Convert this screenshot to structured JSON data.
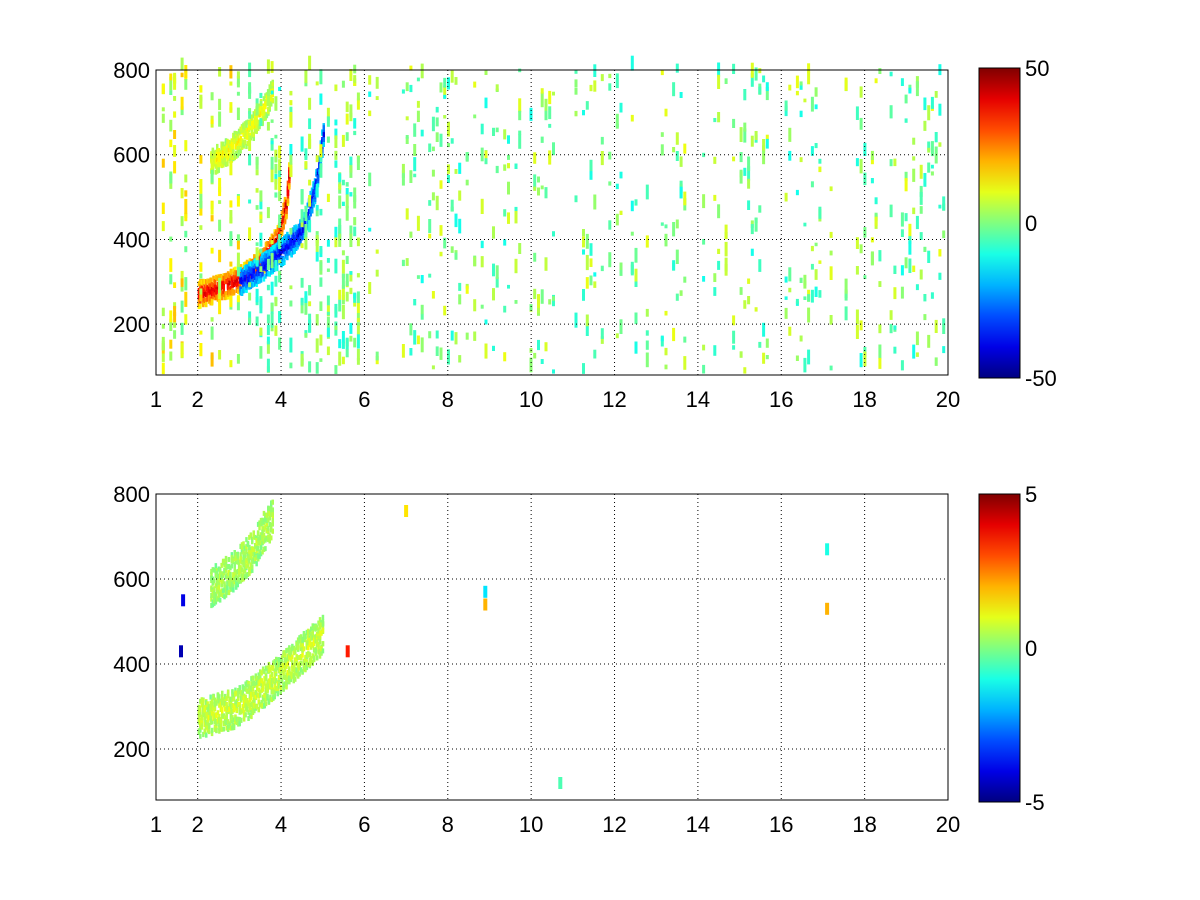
{
  "chart_data": [
    {
      "type": "heatmap",
      "title": "",
      "xlabel": "",
      "ylabel": "",
      "xlim": [
        1,
        20
      ],
      "ylim": [
        80,
        800
      ],
      "x_ticks": [
        "1",
        "2",
        "4",
        "6",
        "8",
        "10",
        "12",
        "14",
        "16",
        "18",
        "20"
      ],
      "x_tick_values": [
        1,
        2,
        4,
        6,
        8,
        10,
        12,
        14,
        16,
        18,
        20
      ],
      "y_ticks": [
        "200",
        "400",
        "600",
        "800"
      ],
      "y_tick_values": [
        200,
        400,
        600,
        800
      ],
      "grid": true,
      "colormap": "jet",
      "colorbar": {
        "min": -50,
        "max": 50,
        "ticks": [
          "50",
          "0",
          "-50"
        ],
        "tick_values": [
          50,
          0,
          -50
        ]
      },
      "features": [
        {
          "name": "upper band",
          "points": [
            [
              2.3,
              580
            ],
            [
              2.8,
              615
            ],
            [
              3.3,
              665
            ],
            [
              3.8,
              750
            ]
          ],
          "value": 12
        },
        {
          "name": "main curve",
          "points": [
            [
              2.0,
              270
            ],
            [
              2.5,
              285
            ],
            [
              3.0,
              305
            ],
            [
              3.5,
              345
            ],
            [
              3.9,
              400
            ],
            [
              4.1,
              480
            ],
            [
              4.2,
              580
            ]
          ],
          "value": 42
        },
        {
          "name": "negative curve",
          "points": [
            [
              3.0,
              300
            ],
            [
              3.5,
              330
            ],
            [
              4.0,
              370
            ],
            [
              4.5,
              420
            ],
            [
              4.8,
              520
            ],
            [
              5.0,
              650
            ]
          ],
          "value": -40
        }
      ],
      "scatter_density": "dense vertical streaks of values near 0 (-10 to 10) across x = 1 to 20"
    },
    {
      "type": "heatmap",
      "title": "",
      "xlabel": "",
      "ylabel": "",
      "xlim": [
        1,
        20
      ],
      "ylim": [
        80,
        800
      ],
      "x_ticks": [
        "1",
        "2",
        "4",
        "6",
        "8",
        "10",
        "12",
        "14",
        "16",
        "18",
        "20"
      ],
      "x_tick_values": [
        1,
        2,
        4,
        6,
        8,
        10,
        12,
        14,
        16,
        18,
        20
      ],
      "y_ticks": [
        "200",
        "400",
        "600",
        "800"
      ],
      "y_tick_values": [
        200,
        400,
        600,
        800
      ],
      "grid": true,
      "colormap": "jet",
      "colorbar": {
        "min": -5,
        "max": 5,
        "ticks": [
          "5",
          "0",
          "-5"
        ],
        "tick_values": [
          5,
          0,
          -5
        ]
      },
      "features": [
        {
          "name": "upper band",
          "points": [
            [
              2.3,
              580
            ],
            [
              2.8,
              615
            ],
            [
              3.3,
              665
            ],
            [
              3.8,
              750
            ]
          ],
          "value": 0.5
        },
        {
          "name": "main region",
          "points": [
            [
              2.0,
              270
            ],
            [
              3.0,
              300
            ],
            [
              4.0,
              380
            ],
            [
              5.0,
              470
            ]
          ],
          "value": 0.8
        }
      ],
      "isolated_points": [
        {
          "x": 1.6,
          "y": 430,
          "value": -4.5
        },
        {
          "x": 1.65,
          "y": 550,
          "value": -4.0
        },
        {
          "x": 7.0,
          "y": 760,
          "value": 1.5
        },
        {
          "x": 8.9,
          "y": 570,
          "value": -1.5
        },
        {
          "x": 8.9,
          "y": 540,
          "value": 2.0
        },
        {
          "x": 10.7,
          "y": 120,
          "value": -0.5
        },
        {
          "x": 17.1,
          "y": 530,
          "value": 2.0
        },
        {
          "x": 17.1,
          "y": 670,
          "value": -1.0
        },
        {
          "x": 5.6,
          "y": 430,
          "value": 3.5
        }
      ]
    }
  ]
}
